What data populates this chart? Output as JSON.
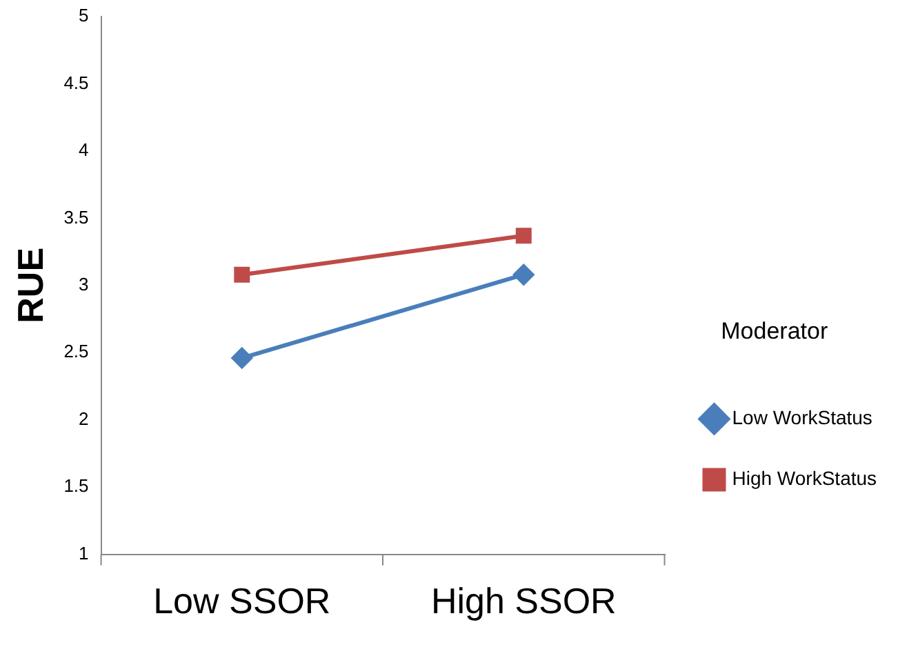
{
  "chart_data": {
    "type": "line",
    "ylabel": "RUE",
    "legend_title": "Moderator",
    "categories": [
      "Low SSOR",
      "High SSOR"
    ],
    "series": [
      {
        "name": "Low WorkStatus",
        "color": "#4a7ebb",
        "values": [
          2.46,
          3.08
        ],
        "marker": "diamond"
      },
      {
        "name": "High WorkStatus",
        "color": "#be4b48",
        "values": [
          3.08,
          3.37
        ],
        "marker": "square"
      }
    ],
    "ylim": [
      1,
      5
    ],
    "yticks": [
      1,
      1.5,
      2,
      2.5,
      3,
      3.5,
      4,
      4.5,
      5
    ],
    "grid": false,
    "legend": "right",
    "line_style": "solid"
  }
}
